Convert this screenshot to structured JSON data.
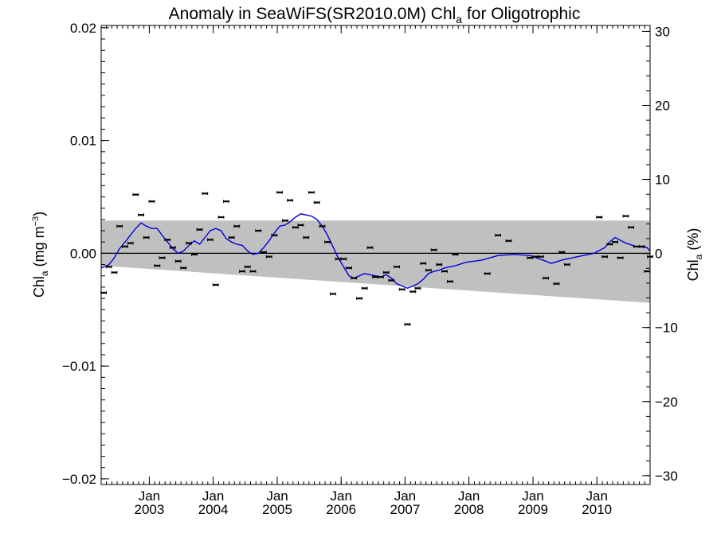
{
  "chart_data": {
    "type": "scatter",
    "title": {
      "prefix": "Anomaly in SeaWiFS(SR2010.0M) Chl",
      "sub": "a",
      "suffix": " for Oligotrophic"
    },
    "ylabel_left": {
      "prefix": "Chl",
      "sub": "a",
      "mid": " (mg m",
      "sup": "−3",
      "suffix": ")"
    },
    "ylabel_right": {
      "prefix": "Chl",
      "sub": "a",
      "suffix": " (%)"
    },
    "x_axis": {
      "type": "date",
      "xlim": [
        "2002-04-01",
        "2010-11-01"
      ],
      "tick_labels": [
        {
          "date": "2003-01-01",
          "line1": "Jan",
          "line2": "2003"
        },
        {
          "date": "2004-01-01",
          "line1": "Jan",
          "line2": "2004"
        },
        {
          "date": "2005-01-01",
          "line1": "Jan",
          "line2": "2005"
        },
        {
          "date": "2006-01-01",
          "line1": "Jan",
          "line2": "2006"
        },
        {
          "date": "2007-01-01",
          "line1": "Jan",
          "line2": "2007"
        },
        {
          "date": "2008-01-01",
          "line1": "Jan",
          "line2": "2008"
        },
        {
          "date": "2009-01-01",
          "line1": "Jan",
          "line2": "2009"
        },
        {
          "date": "2010-01-01",
          "line1": "Jan",
          "line2": "2010"
        }
      ]
    },
    "y_axis_left": {
      "ylim": [
        -0.0205,
        0.0202
      ],
      "ticks": [
        {
          "value": 0.02,
          "label": "0.02"
        },
        {
          "value": 0.01,
          "label": "0.01"
        },
        {
          "value": 0.0,
          "label": "0.00"
        },
        {
          "value": -0.01,
          "label": "−0.01"
        },
        {
          "value": -0.02,
          "label": "−0.02"
        }
      ]
    },
    "y_axis_right": {
      "ylim": [
        -31.2,
        30.8
      ],
      "ticks": [
        {
          "value": 30,
          "label": "30"
        },
        {
          "value": 20,
          "label": "20"
        },
        {
          "value": 10,
          "label": "10"
        },
        {
          "value": 0,
          "label": "0"
        },
        {
          "value": -10,
          "label": "−10"
        },
        {
          "value": -20,
          "label": "−20"
        },
        {
          "value": -30,
          "label": "−30"
        }
      ]
    },
    "shaded_band": {
      "upper": [
        [
          "2002-04-01",
          0.0029
        ],
        [
          "2010-11-01",
          0.0029
        ]
      ],
      "lower": [
        [
          "2002-04-01",
          -0.0011
        ],
        [
          "2010-11-01",
          -0.0044
        ]
      ]
    },
    "zero_line": 0.0,
    "monthly_anomaly": [
      [
        "2002-04-15",
        -0.0035
      ],
      [
        "2002-05-15",
        -0.0012
      ],
      [
        "2002-06-15",
        -0.0017
      ],
      [
        "2002-07-15",
        0.0024
      ],
      [
        "2002-08-15",
        0.0006
      ],
      [
        "2002-09-15",
        0.0009
      ],
      [
        "2002-10-15",
        0.0052
      ],
      [
        "2002-11-15",
        0.0034
      ],
      [
        "2002-12-15",
        0.0014
      ],
      [
        "2003-01-15",
        0.0046
      ],
      [
        "2003-02-15",
        -0.0011
      ],
      [
        "2003-03-15",
        -0.0004
      ],
      [
        "2003-04-15",
        0.0012
      ],
      [
        "2003-05-15",
        0.0005
      ],
      [
        "2003-06-15",
        -0.0007
      ],
      [
        "2003-07-15",
        -0.0013
      ],
      [
        "2003-08-15",
        0.0009
      ],
      [
        "2003-09-15",
        -0.0001
      ],
      [
        "2003-10-15",
        0.0021
      ],
      [
        "2003-11-15",
        0.0053
      ],
      [
        "2003-12-15",
        0.0012
      ],
      [
        "2004-01-15",
        -0.0028
      ],
      [
        "2004-02-15",
        0.0032
      ],
      [
        "2004-03-15",
        0.0046
      ],
      [
        "2004-04-15",
        0.0014
      ],
      [
        "2004-05-15",
        0.0024
      ],
      [
        "2004-06-15",
        -0.0016
      ],
      [
        "2004-07-15",
        -0.0012
      ],
      [
        "2004-08-15",
        -0.0016
      ],
      [
        "2004-09-15",
        0.002
      ],
      [
        "2004-10-15",
        0.0001
      ],
      [
        "2004-11-15",
        -0.0003
      ],
      [
        "2004-12-15",
        0.0016
      ],
      [
        "2005-01-15",
        0.0054
      ],
      [
        "2005-02-15",
        0.0029
      ],
      [
        "2005-03-15",
        0.0047
      ],
      [
        "2005-04-15",
        0.0023
      ],
      [
        "2005-05-15",
        0.0025
      ],
      [
        "2005-06-15",
        0.0014
      ],
      [
        "2005-07-15",
        0.0054
      ],
      [
        "2005-08-15",
        0.0045
      ],
      [
        "2005-09-15",
        0.0024
      ],
      [
        "2005-10-15",
        0.001
      ],
      [
        "2005-11-15",
        -0.0036
      ],
      [
        "2005-12-15",
        -0.0005
      ],
      [
        "2006-01-15",
        -0.0005
      ],
      [
        "2006-02-15",
        -0.0013
      ],
      [
        "2006-03-15",
        -0.0022
      ],
      [
        "2006-04-15",
        -0.004
      ],
      [
        "2006-05-15",
        -0.0031
      ],
      [
        "2006-06-15",
        0.0005
      ],
      [
        "2006-07-15",
        -0.0021
      ],
      [
        "2006-08-15",
        -0.0021
      ],
      [
        "2006-09-15",
        -0.0017
      ],
      [
        "2006-10-15",
        -0.0024
      ],
      [
        "2006-11-15",
        -0.0012
      ],
      [
        "2006-12-15",
        -0.0032
      ],
      [
        "2007-01-15",
        -0.0063
      ],
      [
        "2007-02-15",
        -0.0034
      ],
      [
        "2007-03-15",
        -0.0031
      ],
      [
        "2007-04-15",
        -0.0009
      ],
      [
        "2007-05-15",
        -0.0015
      ],
      [
        "2007-06-15",
        0.0003
      ],
      [
        "2007-07-15",
        -0.001
      ],
      [
        "2007-08-15",
        -0.0016
      ],
      [
        "2007-09-15",
        -0.0025
      ],
      [
        "2007-10-15",
        -0.0001
      ],
      [
        "2008-04-15",
        -0.0018
      ],
      [
        "2008-06-15",
        0.0016
      ],
      [
        "2008-08-15",
        0.0011
      ],
      [
        "2008-12-15",
        -0.0004
      ],
      [
        "2009-01-15",
        -0.0003
      ],
      [
        "2009-02-15",
        -0.0003
      ],
      [
        "2009-03-15",
        -0.0022
      ],
      [
        "2009-05-15",
        -0.0027
      ],
      [
        "2009-06-15",
        0.0001
      ],
      [
        "2009-07-15",
        -0.001
      ],
      [
        "2010-01-15",
        0.0032
      ],
      [
        "2010-02-15",
        -0.0003
      ],
      [
        "2010-03-15",
        0.0008
      ],
      [
        "2010-04-15",
        0.001
      ],
      [
        "2010-05-15",
        -0.0004
      ],
      [
        "2010-06-15",
        0.0033
      ],
      [
        "2010-07-15",
        0.0023
      ],
      [
        "2010-08-15",
        0.0006
      ],
      [
        "2010-09-15",
        0.0006
      ],
      [
        "2010-10-15",
        -0.0016
      ],
      [
        "2010-11-01",
        -0.0003
      ]
    ],
    "running_mean": {
      "color": "#0000dd",
      "points": [
        [
          "2002-04-01",
          -0.0013
        ],
        [
          "2002-05-15",
          -0.001
        ],
        [
          "2002-06-15",
          -0.0004
        ],
        [
          "2002-07-15",
          0.0004
        ],
        [
          "2002-08-15",
          0.001
        ],
        [
          "2002-09-15",
          0.0016
        ],
        [
          "2002-10-15",
          0.0022
        ],
        [
          "2002-11-15",
          0.0027
        ],
        [
          "2002-12-15",
          0.0024
        ],
        [
          "2003-01-15",
          0.0022
        ],
        [
          "2003-02-15",
          0.0022
        ],
        [
          "2003-03-15",
          0.0016
        ],
        [
          "2003-04-15",
          0.001
        ],
        [
          "2003-05-15",
          0.0004
        ],
        [
          "2003-06-15",
          0.0
        ],
        [
          "2003-07-15",
          0.0002
        ],
        [
          "2003-08-15",
          0.0007
        ],
        [
          "2003-09-15",
          0.0011
        ],
        [
          "2003-10-15",
          0.0008
        ],
        [
          "2003-11-15",
          0.0014
        ],
        [
          "2003-12-15",
          0.002
        ],
        [
          "2004-01-15",
          0.0022
        ],
        [
          "2004-02-15",
          0.002
        ],
        [
          "2004-03-15",
          0.0013
        ],
        [
          "2004-04-15",
          0.001
        ],
        [
          "2004-05-15",
          0.0008
        ],
        [
          "2004-06-15",
          0.0007
        ],
        [
          "2004-07-15",
          0.0002
        ],
        [
          "2004-08-15",
          -0.0001
        ],
        [
          "2004-09-15",
          0.0
        ],
        [
          "2004-10-15",
          0.0005
        ],
        [
          "2004-11-15",
          0.0011
        ],
        [
          "2004-12-15",
          0.0018
        ],
        [
          "2005-01-15",
          0.0024
        ],
        [
          "2005-02-15",
          0.0025
        ],
        [
          "2005-03-15",
          0.0028
        ],
        [
          "2005-04-15",
          0.0032
        ],
        [
          "2005-05-15",
          0.0035
        ],
        [
          "2005-06-15",
          0.0034
        ],
        [
          "2005-07-15",
          0.0033
        ],
        [
          "2005-08-15",
          0.003
        ],
        [
          "2005-09-15",
          0.0024
        ],
        [
          "2005-10-15",
          0.0016
        ],
        [
          "2005-11-15",
          0.0006
        ],
        [
          "2005-12-15",
          -0.0004
        ],
        [
          "2006-01-15",
          -0.0012
        ],
        [
          "2006-02-15",
          -0.002
        ],
        [
          "2006-03-15",
          -0.0022
        ],
        [
          "2006-04-15",
          -0.002
        ],
        [
          "2006-05-15",
          -0.0018
        ],
        [
          "2006-06-15",
          -0.0019
        ],
        [
          "2006-07-15",
          -0.002
        ],
        [
          "2006-08-15",
          -0.0021
        ],
        [
          "2006-09-15",
          -0.0019
        ],
        [
          "2006-10-15",
          -0.0022
        ],
        [
          "2006-11-15",
          -0.0027
        ],
        [
          "2006-12-15",
          -0.0029
        ],
        [
          "2007-01-15",
          -0.0031
        ],
        [
          "2007-02-15",
          -0.0029
        ],
        [
          "2007-03-15",
          -0.0027
        ],
        [
          "2007-04-15",
          -0.0023
        ],
        [
          "2007-05-15",
          -0.0018
        ],
        [
          "2007-06-15",
          -0.0016
        ],
        [
          "2007-07-15",
          -0.0015
        ],
        [
          "2007-08-15",
          -0.0013
        ],
        [
          "2007-09-15",
          -0.0012
        ],
        [
          "2007-10-15",
          -0.0011
        ],
        [
          "2007-12-15",
          -0.0008
        ],
        [
          "2008-03-15",
          -0.0006
        ],
        [
          "2008-06-15",
          -0.0002
        ],
        [
          "2008-09-15",
          -0.0001
        ],
        [
          "2008-12-15",
          -0.0002
        ],
        [
          "2009-03-15",
          -0.0007
        ],
        [
          "2009-04-15",
          -0.0009
        ],
        [
          "2009-06-15",
          -0.0006
        ],
        [
          "2009-09-15",
          -0.0003
        ],
        [
          "2009-12-15",
          0.0
        ],
        [
          "2010-02-15",
          0.0005
        ],
        [
          "2010-03-15",
          0.001
        ],
        [
          "2010-04-15",
          0.0014
        ],
        [
          "2010-06-15",
          0.0009
        ],
        [
          "2010-08-15",
          0.0006
        ],
        [
          "2010-10-15",
          0.0005
        ],
        [
          "2010-11-01",
          0.0002
        ]
      ]
    },
    "colors": {
      "band": "#c0c0c0",
      "line": "#0000dd",
      "markers": "#000000",
      "axis": "#000000"
    },
    "grid": false,
    "legend": "none"
  }
}
